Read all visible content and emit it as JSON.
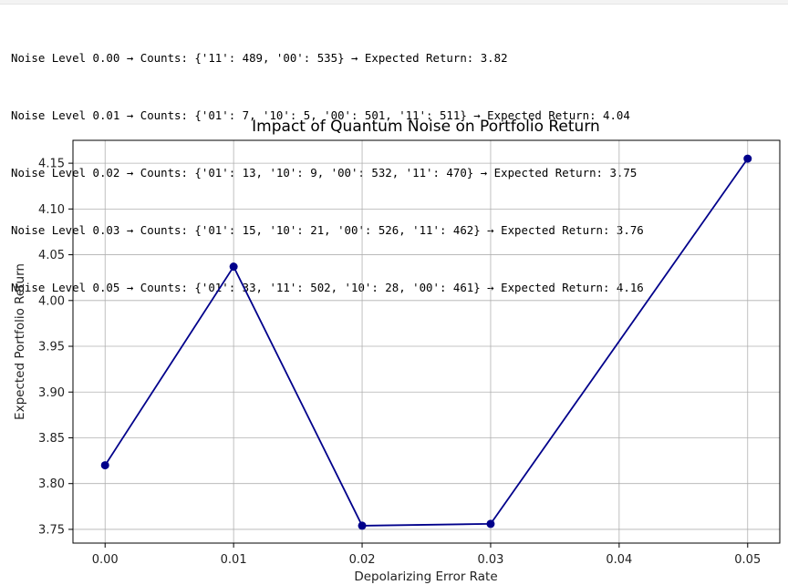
{
  "console_output": {
    "lines": [
      "Noise Level 0.00 → Counts: {'11': 489, '00': 535} → Expected Return: 3.82",
      "Noise Level 0.01 → Counts: {'01': 7, '10': 5, '00': 501, '11': 511} → Expected Return: 4.04",
      "Noise Level 0.02 → Counts: {'01': 13, '10': 9, '00': 532, '11': 470} → Expected Return: 3.75",
      "Noise Level 0.03 → Counts: {'01': 15, '10': 21, '00': 526, '11': 462} → Expected Return: 3.76",
      "Noise Level 0.05 → Counts: {'01': 33, '11': 502, '10': 28, '00': 461} → Expected Return: 4.16"
    ]
  },
  "chart_data": {
    "type": "line",
    "title": "Impact of Quantum Noise on Portfolio Return",
    "xlabel": "Depolarizing Error Rate",
    "ylabel": "Expected Portfolio Return",
    "x": [
      0.0,
      0.01,
      0.02,
      0.03,
      0.05
    ],
    "series": [
      {
        "values": [
          3.82,
          4.037,
          3.754,
          3.756,
          4.155
        ],
        "color": "#00008b",
        "marker": "circle"
      }
    ],
    "xlim": [
      -0.0025,
      0.0525
    ],
    "ylim": [
      3.735,
      4.175
    ],
    "xticks": [
      "0.00",
      "0.01",
      "0.02",
      "0.03",
      "0.04",
      "0.05"
    ],
    "yticks": [
      "3.75",
      "3.80",
      "3.85",
      "3.90",
      "3.95",
      "4.00",
      "4.05",
      "4.10",
      "4.15"
    ],
    "grid": true,
    "grid_color": "#b0b0b0",
    "line_color": "#00008b"
  }
}
